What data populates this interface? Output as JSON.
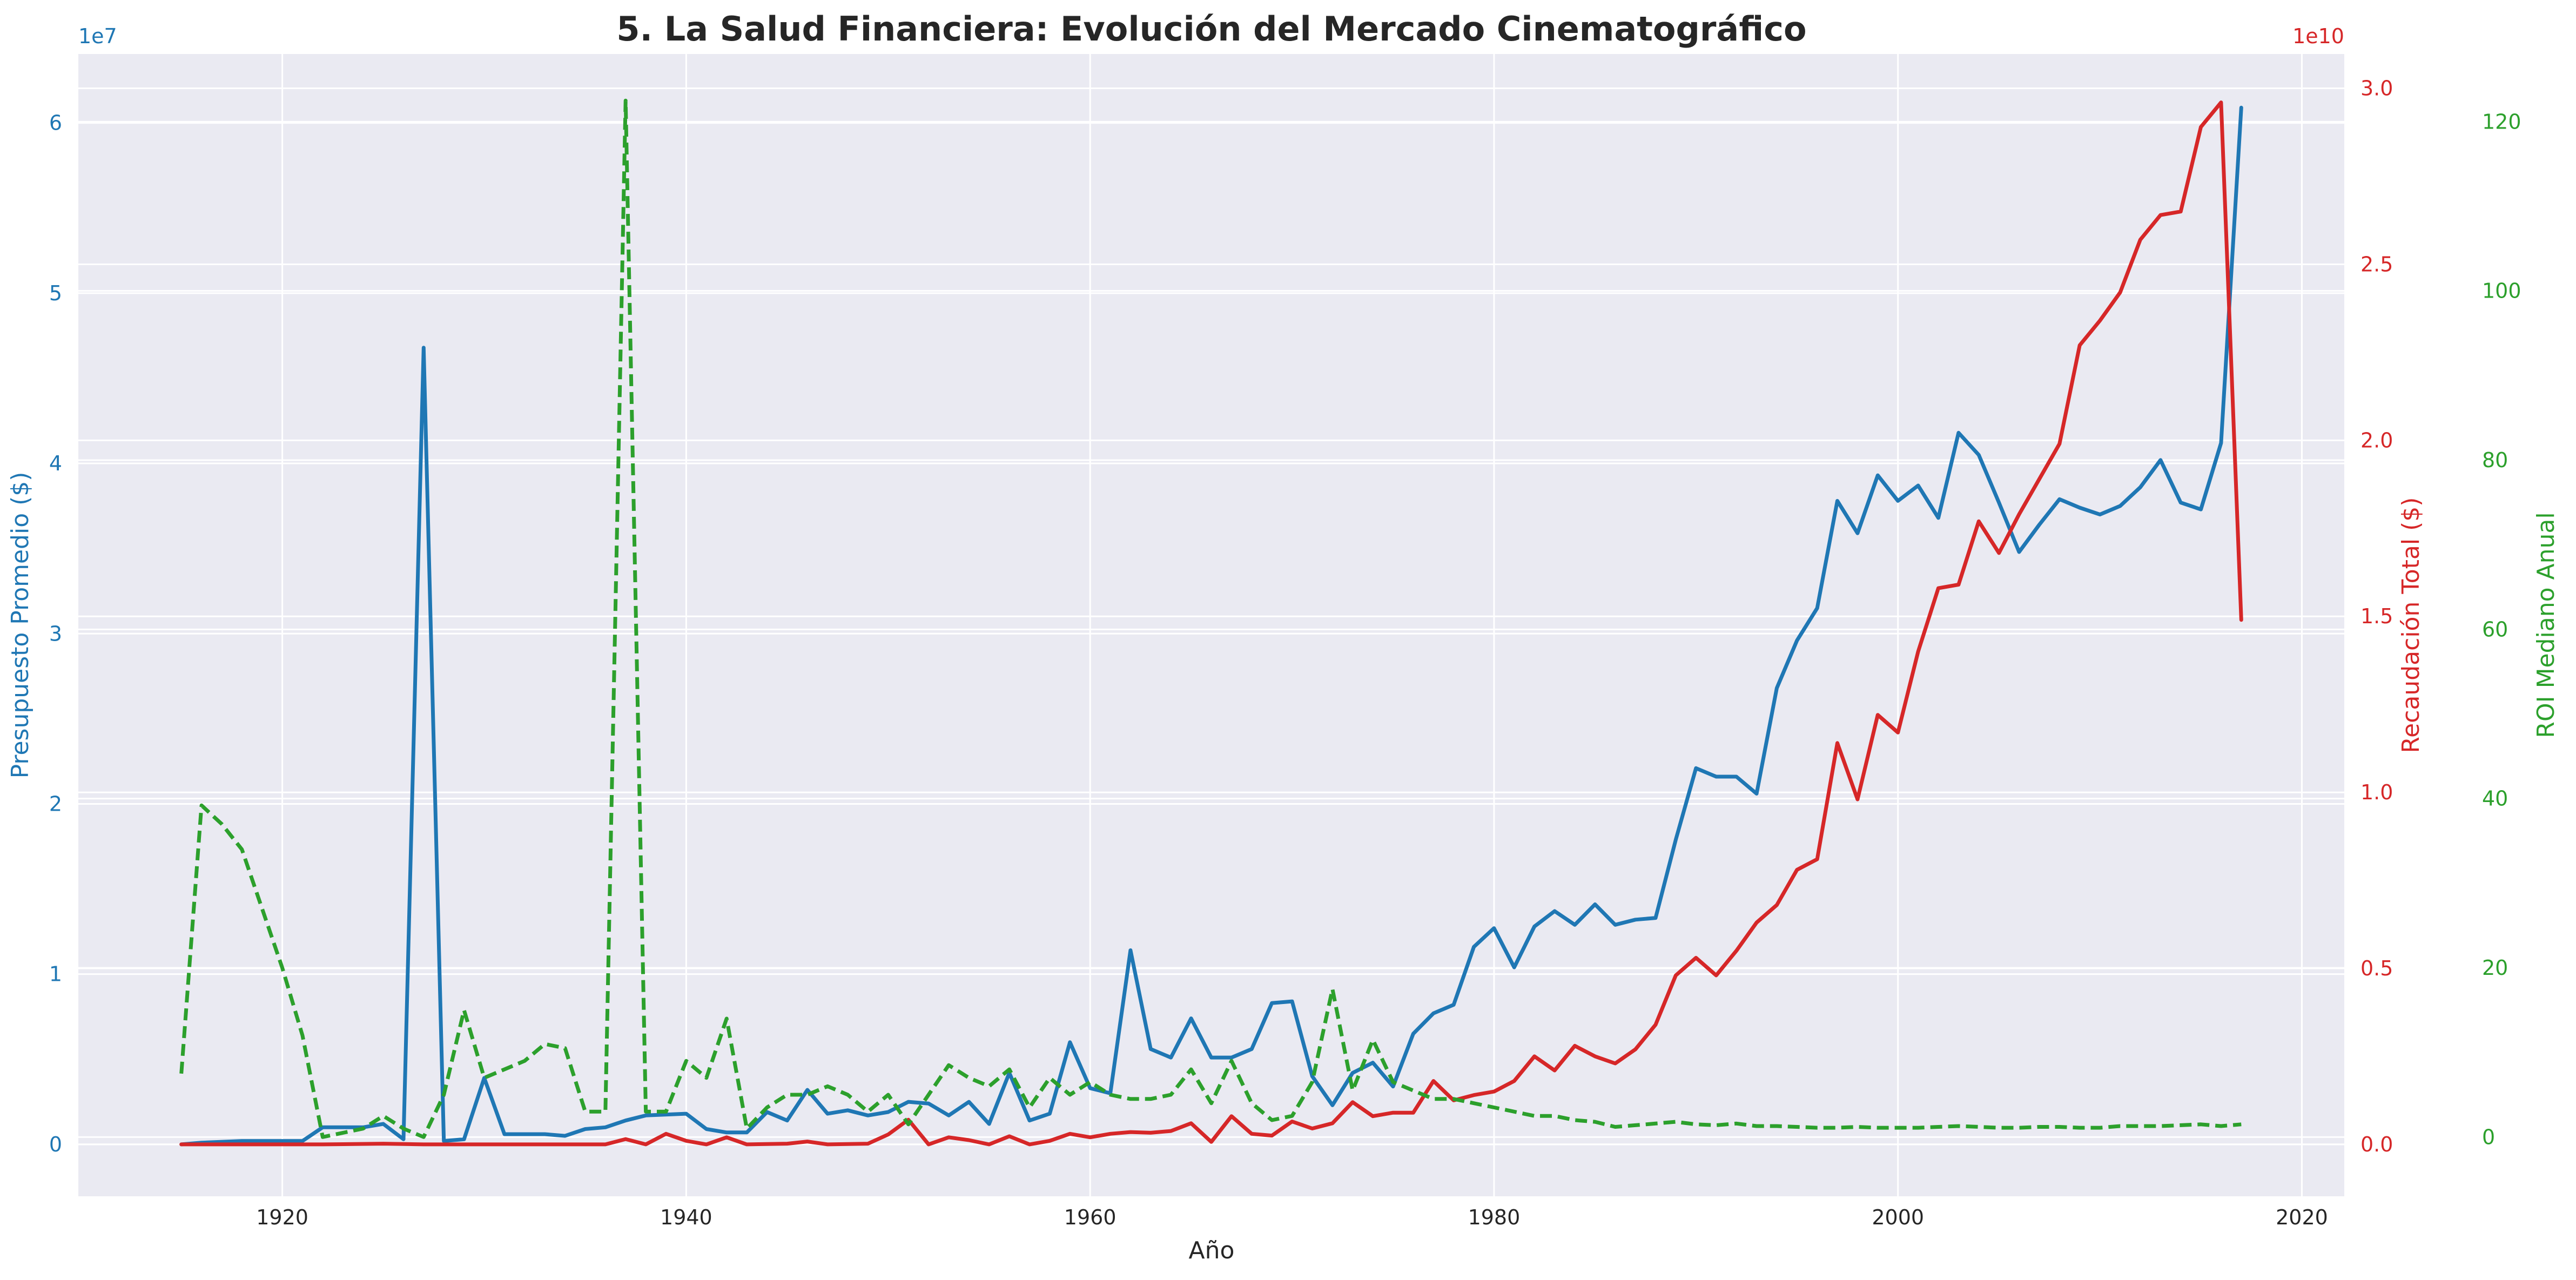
{
  "chart_data": {
    "type": "line",
    "title": "5. La Salud Financiera: Evolución del Mercado Cinematográfico",
    "xlabel": "Año",
    "xlim": [
      1909.9,
      2022.1
    ],
    "x_ticks": [
      1920,
      1940,
      1960,
      1980,
      2000,
      2020
    ],
    "grid": true,
    "axes": [
      {
        "id": "budget",
        "side": "left",
        "label": "Presupuesto Promedio ($)",
        "color": "#1f77b4",
        "ylim": [
          -3050000,
          64050000
        ],
        "ticks": [
          0,
          10000000,
          20000000,
          30000000,
          40000000,
          50000000,
          60000000
        ],
        "tick_labels": [
          "0",
          "1",
          "2",
          "3",
          "4",
          "5",
          "6"
        ],
        "exponent_label": "1e7"
      },
      {
        "id": "gross",
        "side": "right",
        "label": "Recaudación Total ($)",
        "color": "#d62728",
        "ylim": [
          -1475000000,
          30975000000
        ],
        "ticks": [
          0,
          5000000000,
          10000000000,
          15000000000,
          20000000000,
          25000000000,
          30000000000
        ],
        "tick_labels": [
          "0.0",
          "0.5",
          "1.0",
          "1.5",
          "2.0",
          "2.5",
          "3.0"
        ],
        "exponent_label": "1e10"
      },
      {
        "id": "roi",
        "side": "right-outer",
        "label": "ROI Mediano Anual",
        "color": "#2ca02c",
        "ylim": [
          -7,
          128
        ],
        "ticks": [
          0,
          20,
          40,
          60,
          80,
          100,
          120
        ],
        "tick_labels": [
          "0",
          "20",
          "40",
          "60",
          "80",
          "100",
          "120"
        ]
      }
    ],
    "series": [
      {
        "name": "Presupuesto Promedio ($)",
        "axis": "budget",
        "color": "#1f77b4",
        "dash": "solid",
        "points": [
          [
            1915,
            0
          ],
          [
            1916,
            100000
          ],
          [
            1918,
            200000
          ],
          [
            1921,
            200000
          ],
          [
            1922,
            1000000
          ],
          [
            1924,
            1000000
          ],
          [
            1925,
            1200000
          ],
          [
            1926,
            300000
          ],
          [
            1927,
            46800000
          ],
          [
            1928,
            200000
          ],
          [
            1929,
            300000
          ],
          [
            1930,
            3900000
          ],
          [
            1931,
            600000
          ],
          [
            1933,
            600000
          ],
          [
            1934,
            500000
          ],
          [
            1935,
            900000
          ],
          [
            1936,
            1000000
          ],
          [
            1937,
            1400000
          ],
          [
            1938,
            1700000
          ],
          [
            1940,
            1800000
          ],
          [
            1941,
            900000
          ],
          [
            1942,
            700000
          ],
          [
            1943,
            700000
          ],
          [
            1944,
            1900000
          ],
          [
            1945,
            1400000
          ],
          [
            1946,
            3200000
          ],
          [
            1947,
            1800000
          ],
          [
            1948,
            2000000
          ],
          [
            1949,
            1700000
          ],
          [
            1950,
            1900000
          ],
          [
            1951,
            2500000
          ],
          [
            1952,
            2400000
          ],
          [
            1953,
            1700000
          ],
          [
            1954,
            2500000
          ],
          [
            1955,
            1200000
          ],
          [
            1956,
            4200000
          ],
          [
            1957,
            1400000
          ],
          [
            1958,
            1800000
          ],
          [
            1959,
            6000000
          ],
          [
            1960,
            3300000
          ],
          [
            1961,
            3000000
          ],
          [
            1962,
            11400000
          ],
          [
            1963,
            5600000
          ],
          [
            1964,
            5100000
          ],
          [
            1965,
            7400000
          ],
          [
            1966,
            5100000
          ],
          [
            1967,
            5100000
          ],
          [
            1968,
            5600000
          ],
          [
            1969,
            8300000
          ],
          [
            1970,
            8400000
          ],
          [
            1971,
            4000000
          ],
          [
            1972,
            2300000
          ],
          [
            1973,
            4200000
          ],
          [
            1974,
            4800000
          ],
          [
            1975,
            3400000
          ],
          [
            1976,
            6500000
          ],
          [
            1977,
            7700000
          ],
          [
            1978,
            8200000
          ],
          [
            1979,
            11600000
          ],
          [
            1980,
            12700000
          ],
          [
            1981,
            10400000
          ],
          [
            1982,
            12800000
          ],
          [
            1983,
            13700000
          ],
          [
            1984,
            12900000
          ],
          [
            1985,
            14100000
          ],
          [
            1986,
            12900000
          ],
          [
            1987,
            13200000
          ],
          [
            1988,
            13300000
          ],
          [
            1989,
            17900000
          ],
          [
            1990,
            22100000
          ],
          [
            1991,
            21600000
          ],
          [
            1992,
            21600000
          ],
          [
            1993,
            20600000
          ],
          [
            1994,
            26800000
          ],
          [
            1995,
            29600000
          ],
          [
            1996,
            31500000
          ],
          [
            1997,
            37800000
          ],
          [
            1998,
            35900000
          ],
          [
            1999,
            39300000
          ],
          [
            2000,
            37800000
          ],
          [
            2001,
            38700000
          ],
          [
            2002,
            36800000
          ],
          [
            2003,
            41800000
          ],
          [
            2004,
            40500000
          ],
          [
            2005,
            37700000
          ],
          [
            2006,
            34800000
          ],
          [
            2007,
            36400000
          ],
          [
            2008,
            37900000
          ],
          [
            2009,
            37400000
          ],
          [
            2010,
            37000000
          ],
          [
            2011,
            37500000
          ],
          [
            2012,
            38600000
          ],
          [
            2013,
            40200000
          ],
          [
            2014,
            37700000
          ],
          [
            2015,
            37300000
          ],
          [
            2016,
            41200000
          ],
          [
            2017,
            60900000
          ]
        ]
      },
      {
        "name": "Recaudación Total ($)",
        "axis": "gross",
        "color": "#d62728",
        "dash": "solid",
        "points": [
          [
            1915,
            0
          ],
          [
            1922,
            0
          ],
          [
            1925,
            20000000
          ],
          [
            1927,
            0
          ],
          [
            1936,
            0
          ],
          [
            1937,
            150000000
          ],
          [
            1938,
            0
          ],
          [
            1939,
            300000000
          ],
          [
            1940,
            100000000
          ],
          [
            1941,
            0
          ],
          [
            1942,
            200000000
          ],
          [
            1943,
            0
          ],
          [
            1945,
            20000000
          ],
          [
            1946,
            80000000
          ],
          [
            1947,
            0
          ],
          [
            1949,
            20000000
          ],
          [
            1950,
            280000000
          ],
          [
            1951,
            700000000
          ],
          [
            1952,
            0
          ],
          [
            1953,
            200000000
          ],
          [
            1954,
            120000000
          ],
          [
            1955,
            0
          ],
          [
            1956,
            230000000
          ],
          [
            1957,
            0
          ],
          [
            1958,
            100000000
          ],
          [
            1959,
            300000000
          ],
          [
            1960,
            200000000
          ],
          [
            1961,
            300000000
          ],
          [
            1962,
            350000000
          ],
          [
            1963,
            330000000
          ],
          [
            1964,
            380000000
          ],
          [
            1965,
            600000000
          ],
          [
            1966,
            70000000
          ],
          [
            1967,
            800000000
          ],
          [
            1968,
            300000000
          ],
          [
            1969,
            250000000
          ],
          [
            1970,
            650000000
          ],
          [
            1971,
            450000000
          ],
          [
            1972,
            600000000
          ],
          [
            1973,
            1200000000
          ],
          [
            1974,
            800000000
          ],
          [
            1975,
            900000000
          ],
          [
            1976,
            900000000
          ],
          [
            1977,
            1800000000
          ],
          [
            1978,
            1250000000
          ],
          [
            1979,
            1400000000
          ],
          [
            1980,
            1500000000
          ],
          [
            1981,
            1800000000
          ],
          [
            1982,
            2500000000
          ],
          [
            1983,
            2100000000
          ],
          [
            1984,
            2800000000
          ],
          [
            1985,
            2500000000
          ],
          [
            1986,
            2300000000
          ],
          [
            1987,
            2700000000
          ],
          [
            1988,
            3400000000
          ],
          [
            1989,
            4800000000
          ],
          [
            1990,
            5300000000
          ],
          [
            1991,
            4800000000
          ],
          [
            1992,
            5500000000
          ],
          [
            1993,
            6300000000
          ],
          [
            1994,
            6800000000
          ],
          [
            1995,
            7800000000
          ],
          [
            1996,
            8100000000
          ],
          [
            1997,
            11400000000
          ],
          [
            1998,
            9800000000
          ],
          [
            1999,
            12200000000
          ],
          [
            2000,
            11700000000
          ],
          [
            2001,
            14000000000
          ],
          [
            2002,
            15800000000
          ],
          [
            2003,
            15900000000
          ],
          [
            2004,
            17700000000
          ],
          [
            2005,
            16800000000
          ],
          [
            2006,
            17900000000
          ],
          [
            2007,
            18900000000
          ],
          [
            2008,
            19900000000
          ],
          [
            2009,
            22700000000
          ],
          [
            2010,
            23400000000
          ],
          [
            2011,
            24200000000
          ],
          [
            2012,
            25700000000
          ],
          [
            2013,
            26400000000
          ],
          [
            2014,
            26500000000
          ],
          [
            2015,
            28900000000
          ],
          [
            2016,
            29600000000
          ],
          [
            2017,
            14900000000
          ]
        ]
      },
      {
        "name": "ROI Mediano Anual",
        "axis": "roi",
        "color": "#2ca02c",
        "dash": "dashed",
        "points": [
          [
            1915,
            7.5
          ],
          [
            1916,
            39.2
          ],
          [
            1917,
            37
          ],
          [
            1918,
            34
          ],
          [
            1919,
            27
          ],
          [
            1920,
            20
          ],
          [
            1921,
            12
          ],
          [
            1922,
            0
          ],
          [
            1924,
            1
          ],
          [
            1925,
            2.5
          ],
          [
            1926,
            1
          ],
          [
            1927,
            0
          ],
          [
            1928,
            5
          ],
          [
            1929,
            15
          ],
          [
            1930,
            7
          ],
          [
            1931,
            8
          ],
          [
            1932,
            9
          ],
          [
            1933,
            11
          ],
          [
            1934,
            10.5
          ],
          [
            1935,
            3
          ],
          [
            1936,
            3
          ],
          [
            1937,
            122.5
          ],
          [
            1938,
            3
          ],
          [
            1939,
            3
          ],
          [
            1940,
            9
          ],
          [
            1941,
            7
          ],
          [
            1942,
            14
          ],
          [
            1943,
            1
          ],
          [
            1944,
            3.5
          ],
          [
            1945,
            5
          ],
          [
            1946,
            5
          ],
          [
            1947,
            6
          ],
          [
            1948,
            5
          ],
          [
            1949,
            3
          ],
          [
            1950,
            5
          ],
          [
            1951,
            1.5
          ],
          [
            1952,
            5
          ],
          [
            1953,
            8.5
          ],
          [
            1954,
            7
          ],
          [
            1955,
            6
          ],
          [
            1956,
            8
          ],
          [
            1957,
            3.5
          ],
          [
            1958,
            7
          ],
          [
            1959,
            5
          ],
          [
            1960,
            6.5
          ],
          [
            1961,
            5
          ],
          [
            1962,
            4.5
          ],
          [
            1963,
            4.5
          ],
          [
            1964,
            5
          ],
          [
            1965,
            8
          ],
          [
            1966,
            4
          ],
          [
            1967,
            9
          ],
          [
            1968,
            4
          ],
          [
            1969,
            2
          ],
          [
            1970,
            2.5
          ],
          [
            1971,
            6.5
          ],
          [
            1972,
            17.5
          ],
          [
            1973,
            5.5
          ],
          [
            1974,
            11.5
          ],
          [
            1975,
            6.5
          ],
          [
            1976,
            5.5
          ],
          [
            1977,
            4.5
          ],
          [
            1978,
            4.5
          ],
          [
            1979,
            4
          ],
          [
            1980,
            3.5
          ],
          [
            1981,
            3
          ],
          [
            1982,
            2.5
          ],
          [
            1983,
            2.5
          ],
          [
            1984,
            2
          ],
          [
            1985,
            1.8
          ],
          [
            1986,
            1.2
          ],
          [
            1987,
            1.4
          ],
          [
            1988,
            1.6
          ],
          [
            1989,
            1.8
          ],
          [
            1990,
            1.5
          ],
          [
            1991,
            1.4
          ],
          [
            1992,
            1.6
          ],
          [
            1993,
            1.3
          ],
          [
            1994,
            1.3
          ],
          [
            1995,
            1.2
          ],
          [
            1996,
            1.1
          ],
          [
            1997,
            1.1
          ],
          [
            1998,
            1.2
          ],
          [
            1999,
            1.1
          ],
          [
            2000,
            1.1
          ],
          [
            2001,
            1.1
          ],
          [
            2002,
            1.2
          ],
          [
            2003,
            1.3
          ],
          [
            2004,
            1.2
          ],
          [
            2005,
            1.1
          ],
          [
            2006,
            1.1
          ],
          [
            2007,
            1.2
          ],
          [
            2008,
            1.2
          ],
          [
            2009,
            1.1
          ],
          [
            2010,
            1.1
          ],
          [
            2011,
            1.3
          ],
          [
            2012,
            1.3
          ],
          [
            2013,
            1.3
          ],
          [
            2014,
            1.4
          ],
          [
            2015,
            1.5
          ],
          [
            2016,
            1.3
          ],
          [
            2017,
            1.5
          ]
        ]
      }
    ]
  }
}
